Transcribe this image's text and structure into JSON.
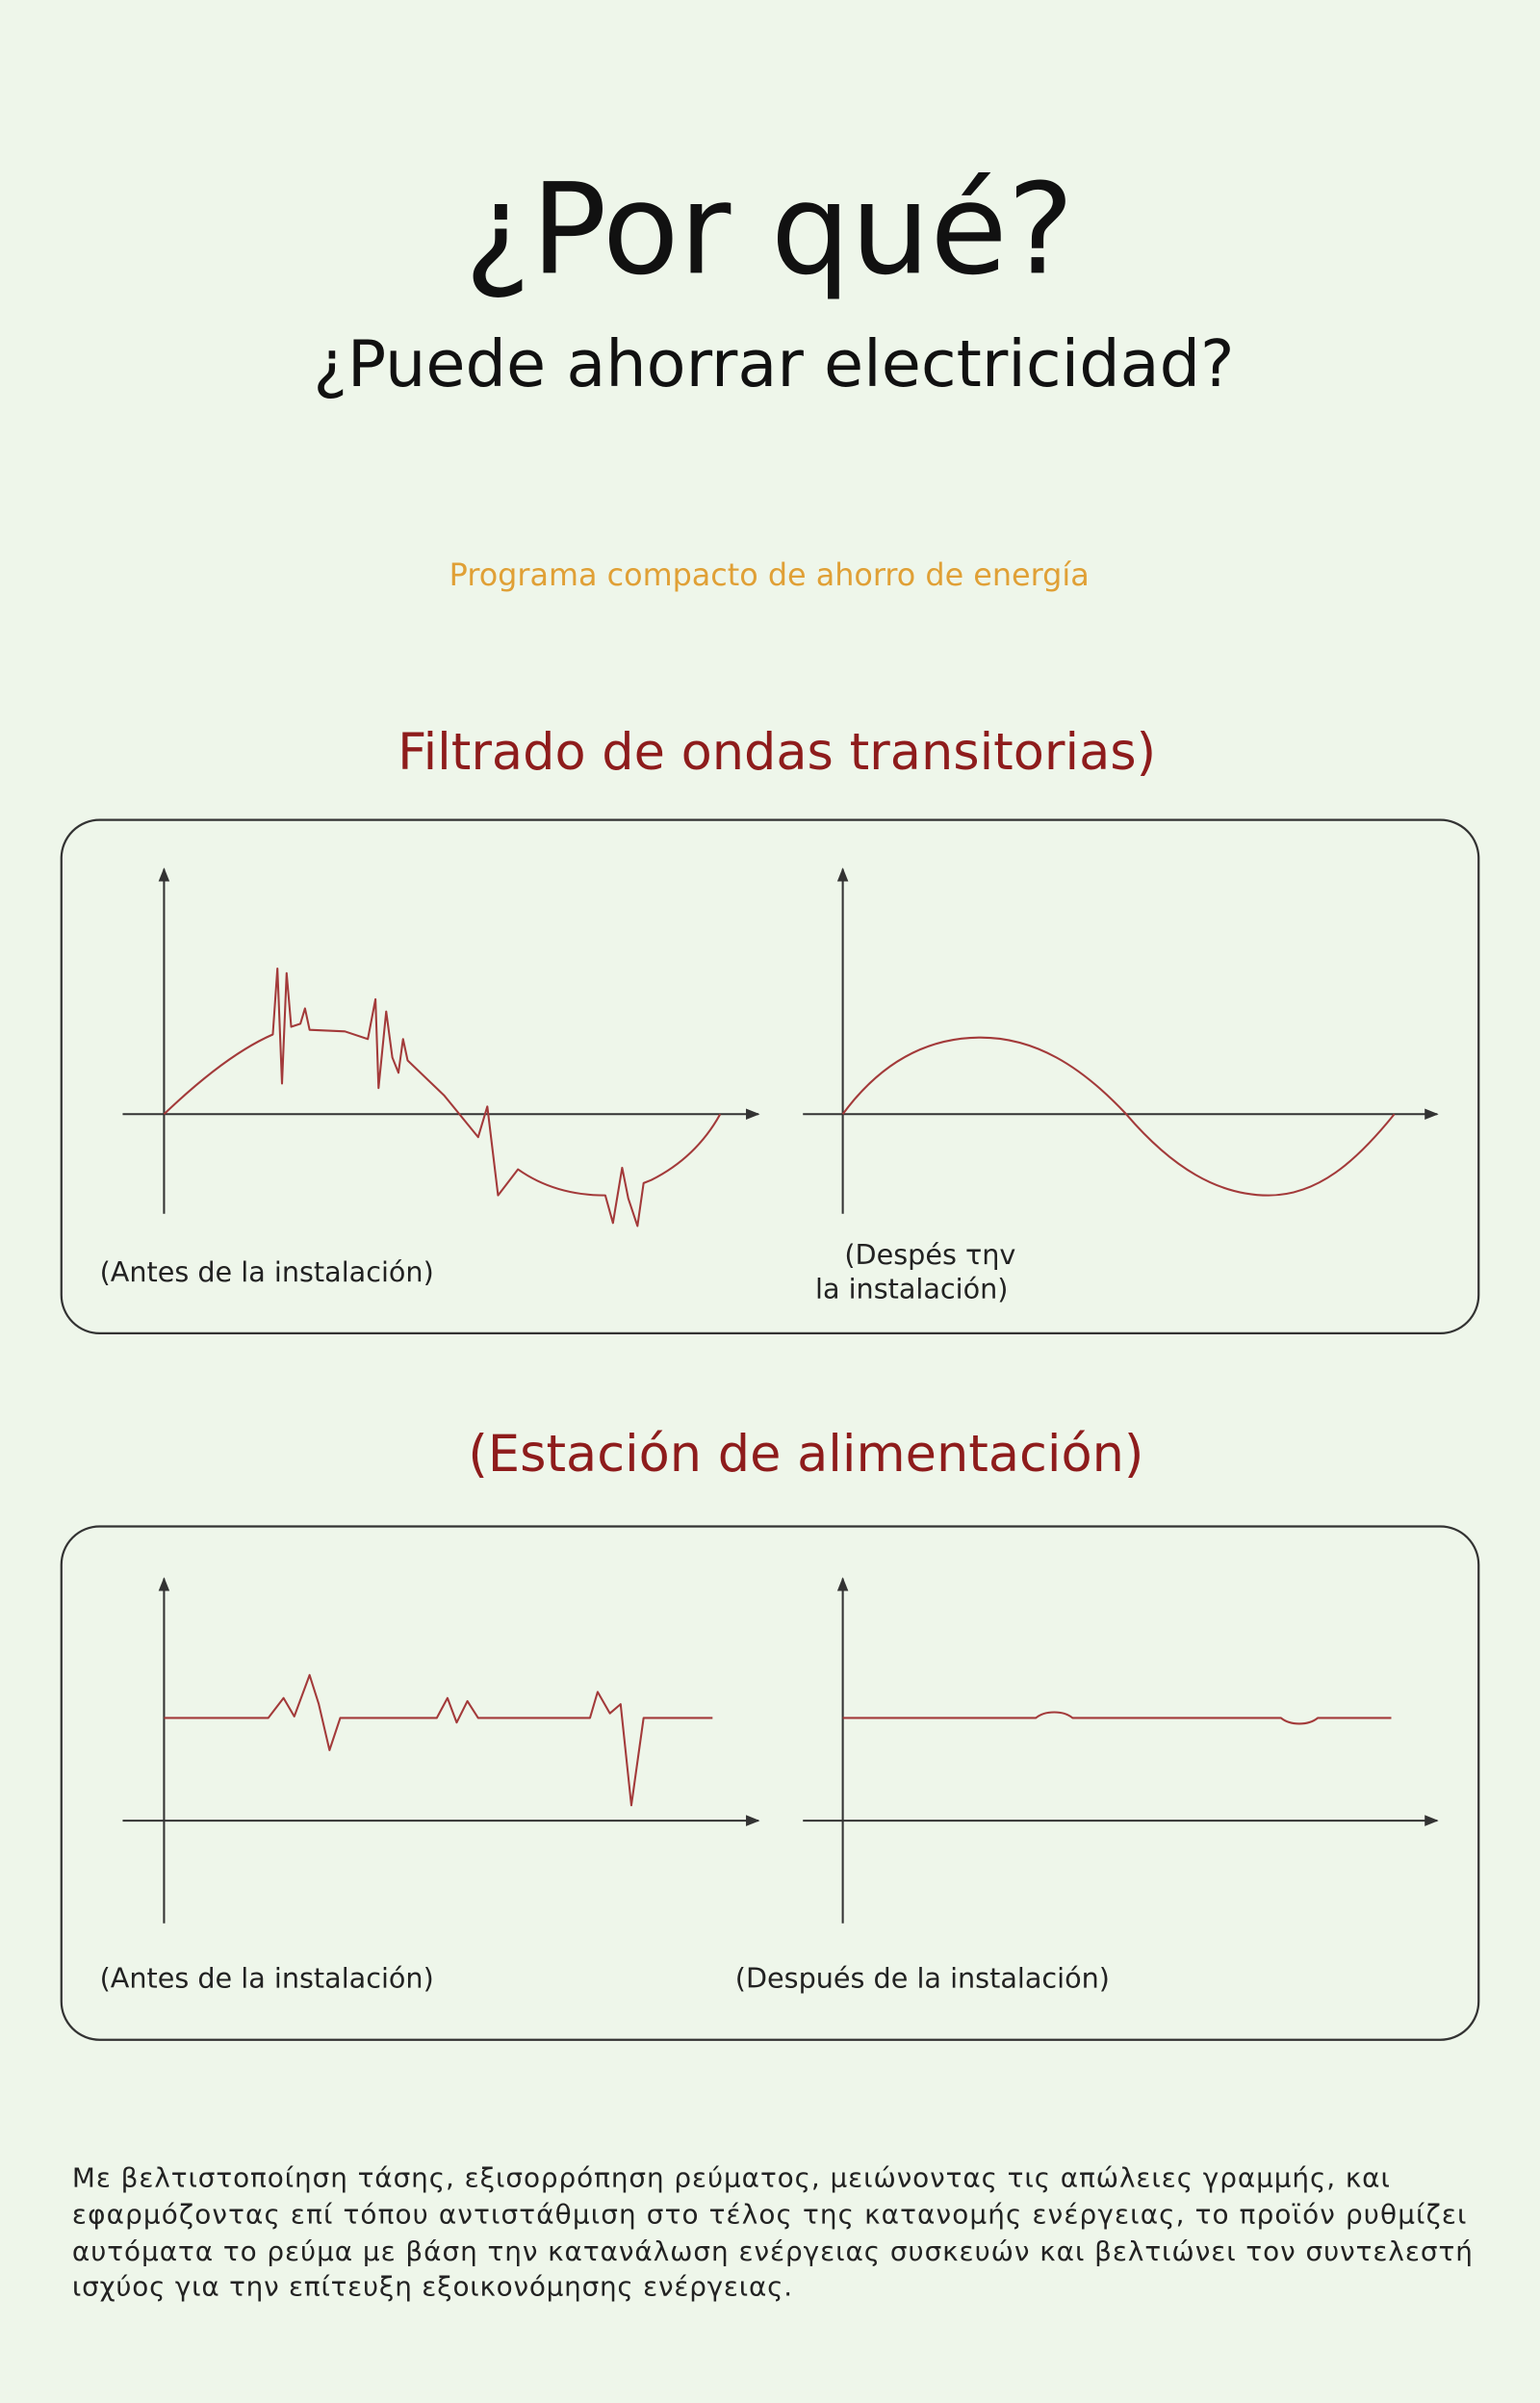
{
  "header": {
    "title": "¿Por qué?",
    "subtitle": "¿Puede ahorrar electricidad?",
    "tagline": "Programa compacto de ahorro de energía"
  },
  "sections": [
    {
      "heading": "Filtrado de ondas transitorias)",
      "before_label": "(Antes de la instalación)",
      "after_label": [
        "(Despés τηv",
        "la instalación)"
      ]
    },
    {
      "heading": "(Estación de alimentación)",
      "before_label": "(Antes de la instalación)",
      "after_label": [
        "(Después de la instalación)"
      ]
    }
  ],
  "description": {
    "lines": [
      "Με βελτιστοποίηση τάσης, εξισορρόπηση ρεύματος, μειώνοντας τις απώλειες γραμμής, και",
      "εφαρμόζοντας επί τόπου αντιστάθμιση στο τέλος της κατανομής ενέργειας, το προϊόν ρυθμίζει",
      "αυτόματα το ρεύμα με βάση την κατανάλωση ενέργειας συσκευών και βελτιώνει τον συντελεστή",
      "ισχύος για την επίτευξη εξοικονόμησης ενέργειας."
    ]
  }
}
